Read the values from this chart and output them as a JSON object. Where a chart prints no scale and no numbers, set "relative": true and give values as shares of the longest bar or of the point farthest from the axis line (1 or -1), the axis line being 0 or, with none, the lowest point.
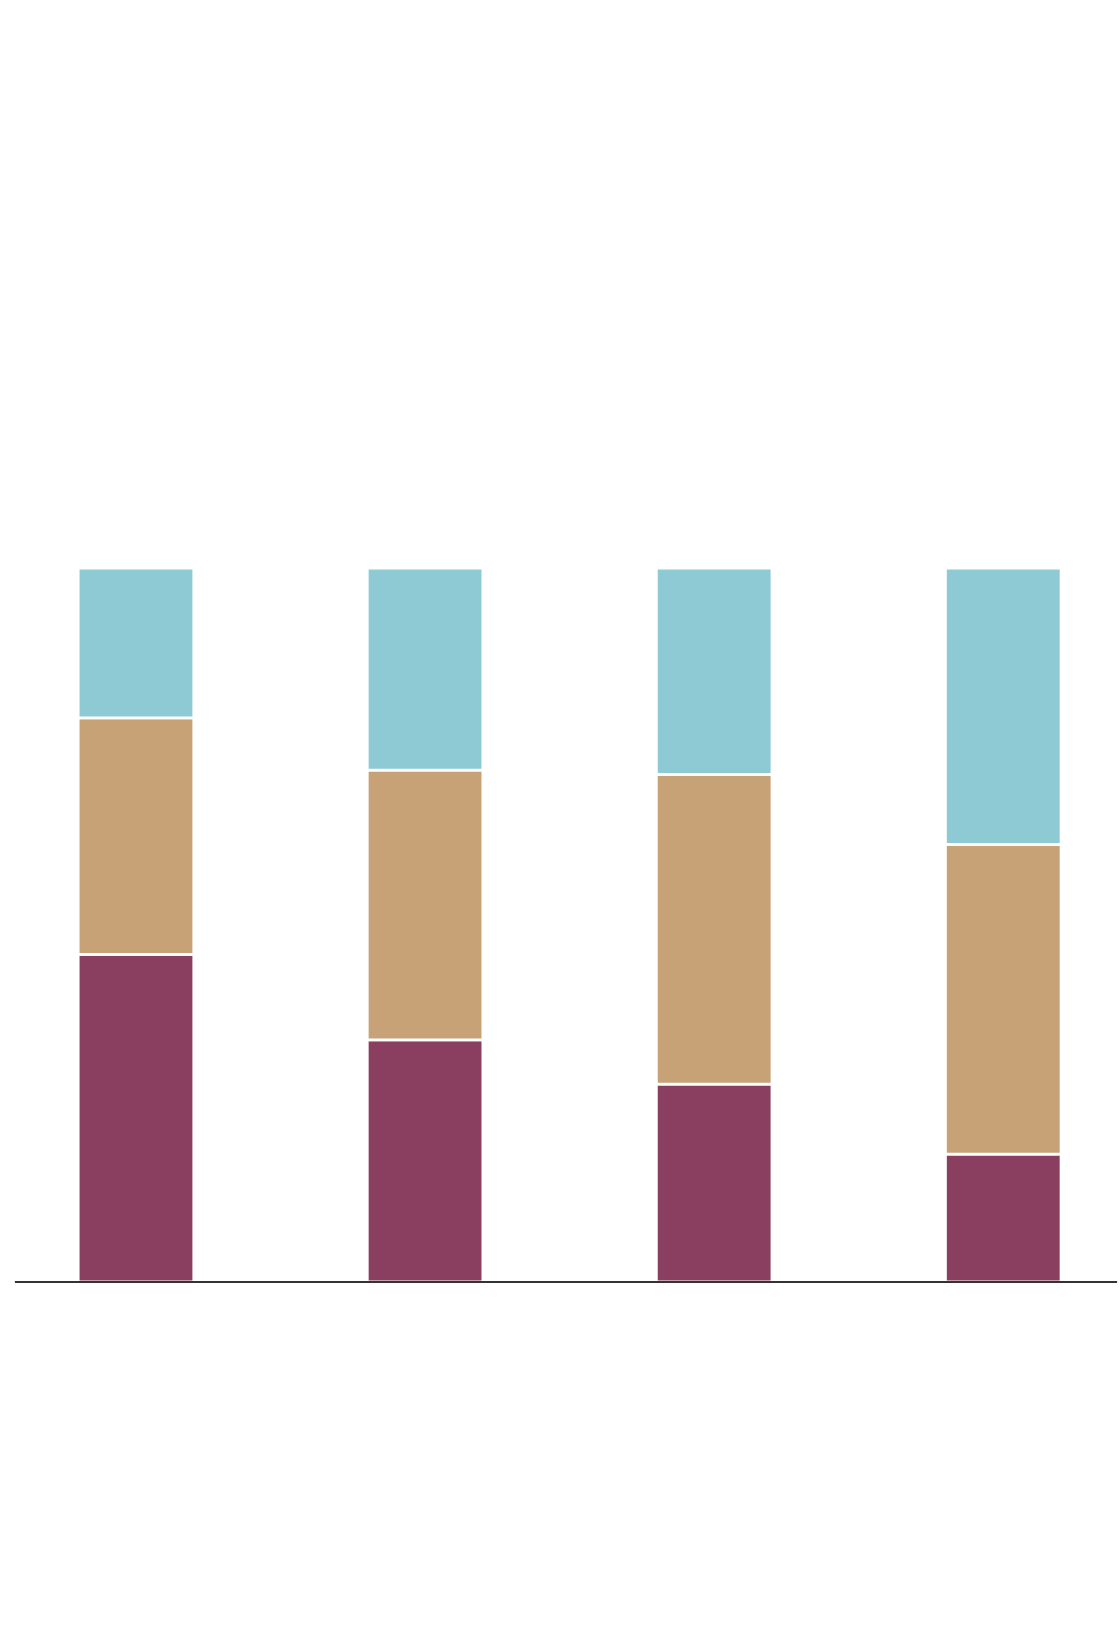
{
  "chart_data": {
    "type": "bar",
    "stacked": true,
    "relative": true,
    "categories": [
      null,
      null,
      null,
      null
    ],
    "series": [
      {
        "color": "#8b3f60",
        "values": [
          0.459,
          0.339,
          0.277,
          0.179
        ]
      },
      {
        "color": "#c6a276",
        "values": [
          0.331,
          0.378,
          0.434,
          0.434
        ]
      },
      {
        "color": "#8ecad4",
        "values": [
          0.21,
          0.283,
          0.289,
          0.387
        ]
      }
    ]
  }
}
